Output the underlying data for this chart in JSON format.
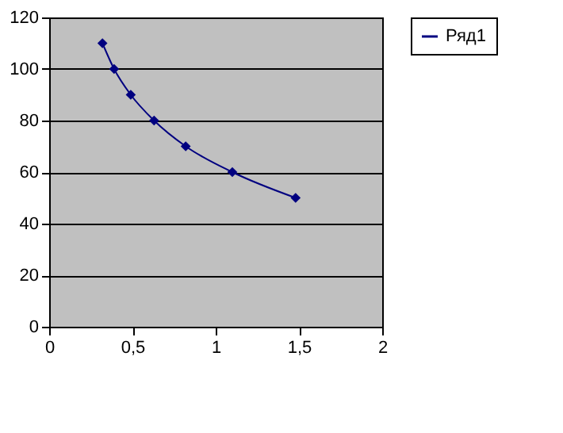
{
  "chart_data": {
    "type": "line",
    "x": [
      0.32,
      0.39,
      0.49,
      0.63,
      0.82,
      1.1,
      1.48
    ],
    "series": [
      {
        "name": "Ряд1",
        "color": "#000080",
        "values": [
          110,
          100,
          90,
          80,
          70,
          60,
          50
        ]
      }
    ],
    "xlim": [
      0,
      2
    ],
    "xticks": [
      0,
      {
        "value": 0.5,
        "label": "0,5"
      },
      1,
      {
        "value": 1.5,
        "label": "1,5"
      },
      2
    ],
    "ylim": [
      0,
      120
    ],
    "yticks": [
      0,
      20,
      40,
      60,
      80,
      100,
      120
    ],
    "grid": "y",
    "legend": "right",
    "marker": "diamond",
    "line_style": "solid"
  }
}
